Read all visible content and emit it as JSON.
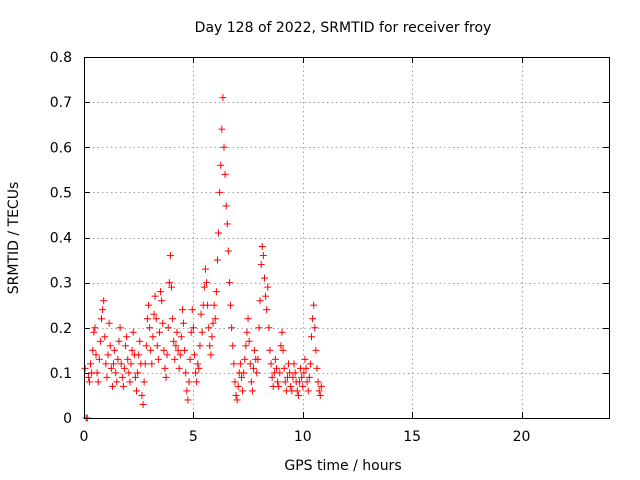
{
  "chart_data": {
    "type": "scatter",
    "title": "Day 128 of 2022, SRMTID for receiver froy",
    "xlabel": "GPS time / hours",
    "ylabel": "SRMTID / TECUs",
    "xlim": [
      0,
      24
    ],
    "ylim": [
      0,
      0.8
    ],
    "xticks": [
      0,
      5,
      10,
      15,
      20
    ],
    "yticks": [
      0,
      0.1,
      0.2,
      0.3,
      0.4,
      0.5,
      0.6,
      0.7,
      0.8
    ],
    "xtick_labels": [
      "0",
      "5",
      "10",
      "15",
      "20"
    ],
    "ytick_labels": [
      "0",
      "0.1",
      "0.2",
      "0.3",
      "0.4",
      "0.5",
      "0.6",
      "0.7",
      "0.8"
    ],
    "grid": true,
    "marker": "plus",
    "color": "#ff0000",
    "series": [
      {
        "name": "SRMTID",
        "points": [
          [
            0.05,
            0.11
          ],
          [
            0.1,
            0.0
          ],
          [
            0.15,
            0.0
          ],
          [
            0.2,
            0.09
          ],
          [
            0.25,
            0.08
          ],
          [
            0.3,
            0.12
          ],
          [
            0.35,
            0.1
          ],
          [
            0.4,
            0.15
          ],
          [
            0.45,
            0.19
          ],
          [
            0.5,
            0.2
          ],
          [
            0.55,
            0.14
          ],
          [
            0.6,
            0.1
          ],
          [
            0.65,
            0.08
          ],
          [
            0.7,
            0.13
          ],
          [
            0.75,
            0.17
          ],
          [
            0.8,
            0.22
          ],
          [
            0.85,
            0.24
          ],
          [
            0.9,
            0.26
          ],
          [
            0.95,
            0.18
          ],
          [
            1.0,
            0.12
          ],
          [
            1.05,
            0.09
          ],
          [
            1.1,
            0.14
          ],
          [
            1.15,
            0.21
          ],
          [
            1.2,
            0.16
          ],
          [
            1.25,
            0.11
          ],
          [
            1.3,
            0.07
          ],
          [
            1.35,
            0.12
          ],
          [
            1.4,
            0.15
          ],
          [
            1.45,
            0.1
          ],
          [
            1.5,
            0.08
          ],
          [
            1.55,
            0.13
          ],
          [
            1.6,
            0.17
          ],
          [
            1.65,
            0.2
          ],
          [
            1.7,
            0.12
          ],
          [
            1.75,
            0.09
          ],
          [
            1.8,
            0.07
          ],
          [
            1.85,
            0.11
          ],
          [
            1.9,
            0.16
          ],
          [
            1.95,
            0.18
          ],
          [
            2.0,
            0.13
          ],
          [
            2.05,
            0.1
          ],
          [
            2.1,
            0.08
          ],
          [
            2.15,
            0.12
          ],
          [
            2.2,
            0.15
          ],
          [
            2.25,
            0.19
          ],
          [
            2.3,
            0.14
          ],
          [
            2.35,
            0.09
          ],
          [
            2.4,
            0.06
          ],
          [
            2.45,
            0.1
          ],
          [
            2.5,
            0.14
          ],
          [
            2.55,
            0.17
          ],
          [
            2.6,
            0.12
          ],
          [
            2.65,
            0.05
          ],
          [
            2.7,
            0.03
          ],
          [
            2.75,
            0.08
          ],
          [
            2.8,
            0.12
          ],
          [
            2.85,
            0.16
          ],
          [
            2.9,
            0.22
          ],
          [
            2.95,
            0.25
          ],
          [
            3.0,
            0.2
          ],
          [
            3.05,
            0.15
          ],
          [
            3.1,
            0.12
          ],
          [
            3.15,
            0.18
          ],
          [
            3.2,
            0.23
          ],
          [
            3.25,
            0.27
          ],
          [
            3.3,
            0.22
          ],
          [
            3.35,
            0.16
          ],
          [
            3.4,
            0.13
          ],
          [
            3.45,
            0.19
          ],
          [
            3.5,
            0.28
          ],
          [
            3.55,
            0.26
          ],
          [
            3.6,
            0.21
          ],
          [
            3.65,
            0.15
          ],
          [
            3.7,
            0.11
          ],
          [
            3.75,
            0.09
          ],
          [
            3.8,
            0.14
          ],
          [
            3.85,
            0.2
          ],
          [
            3.9,
            0.3
          ],
          [
            3.95,
            0.36
          ],
          [
            4.0,
            0.29
          ],
          [
            4.05,
            0.22
          ],
          [
            4.1,
            0.17
          ],
          [
            4.15,
            0.13
          ],
          [
            4.2,
            0.16
          ],
          [
            4.25,
            0.19
          ],
          [
            4.3,
            0.15
          ],
          [
            4.35,
            0.11
          ],
          [
            4.4,
            0.14
          ],
          [
            4.45,
            0.18
          ],
          [
            4.5,
            0.24
          ],
          [
            4.55,
            0.21
          ],
          [
            4.6,
            0.15
          ],
          [
            4.65,
            0.1
          ],
          [
            4.7,
            0.06
          ],
          [
            4.75,
            0.04
          ],
          [
            4.8,
            0.08
          ],
          [
            4.85,
            0.13
          ],
          [
            4.9,
            0.19
          ],
          [
            4.95,
            0.24
          ],
          [
            5.0,
            0.2
          ],
          [
            5.05,
            0.14
          ],
          [
            5.1,
            0.1
          ],
          [
            5.15,
            0.08
          ],
          [
            5.2,
            0.12
          ],
          [
            5.25,
            0.11
          ],
          [
            5.3,
            0.16
          ],
          [
            5.35,
            0.23
          ],
          [
            5.4,
            0.19
          ],
          [
            5.45,
            0.25
          ],
          [
            5.5,
            0.29
          ],
          [
            5.55,
            0.33
          ],
          [
            5.6,
            0.3
          ],
          [
            5.65,
            0.25
          ],
          [
            5.7,
            0.2
          ],
          [
            5.75,
            0.16
          ],
          [
            5.8,
            0.14
          ],
          [
            5.85,
            0.18
          ],
          [
            5.9,
            0.21
          ],
          [
            5.95,
            0.25
          ],
          [
            6.0,
            0.22
          ],
          [
            6.05,
            0.28
          ],
          [
            6.1,
            0.35
          ],
          [
            6.15,
            0.41
          ],
          [
            6.2,
            0.5
          ],
          [
            6.25,
            0.56
          ],
          [
            6.3,
            0.64
          ],
          [
            6.35,
            0.71
          ],
          [
            6.4,
            0.6
          ],
          [
            6.45,
            0.54
          ],
          [
            6.5,
            0.47
          ],
          [
            6.55,
            0.43
          ],
          [
            6.6,
            0.37
          ],
          [
            6.65,
            0.3
          ],
          [
            6.7,
            0.25
          ],
          [
            6.75,
            0.2
          ],
          [
            6.8,
            0.16
          ],
          [
            6.85,
            0.12
          ],
          [
            6.9,
            0.08
          ],
          [
            6.95,
            0.05
          ],
          [
            7.0,
            0.04
          ],
          [
            7.05,
            0.07
          ],
          [
            7.1,
            0.1
          ],
          [
            7.15,
            0.12
          ],
          [
            7.2,
            0.09
          ],
          [
            7.25,
            0.06
          ],
          [
            7.3,
            0.1
          ],
          [
            7.35,
            0.13
          ],
          [
            7.4,
            0.16
          ],
          [
            7.45,
            0.19
          ],
          [
            7.5,
            0.22
          ],
          [
            7.55,
            0.17
          ],
          [
            7.6,
            0.12
          ],
          [
            7.65,
            0.08
          ],
          [
            7.7,
            0.06
          ],
          [
            7.75,
            0.11
          ],
          [
            7.8,
            0.15
          ],
          [
            7.85,
            0.13
          ],
          [
            7.9,
            0.1
          ],
          [
            7.95,
            0.13
          ],
          [
            8.0,
            0.2
          ],
          [
            8.05,
            0.26
          ],
          [
            8.1,
            0.34
          ],
          [
            8.15,
            0.38
          ],
          [
            8.2,
            0.36
          ],
          [
            8.25,
            0.31
          ],
          [
            8.3,
            0.27
          ],
          [
            8.35,
            0.24
          ],
          [
            8.4,
            0.29
          ],
          [
            8.45,
            0.2
          ],
          [
            8.5,
            0.15
          ],
          [
            8.55,
            0.12
          ],
          [
            8.6,
            0.09
          ],
          [
            8.65,
            0.07
          ],
          [
            8.7,
            0.1
          ],
          [
            8.75,
            0.13
          ],
          [
            8.8,
            0.11
          ],
          [
            8.85,
            0.08
          ],
          [
            8.9,
            0.07
          ],
          [
            8.95,
            0.1
          ],
          [
            9.0,
            0.16
          ],
          [
            9.05,
            0.19
          ],
          [
            9.1,
            0.15
          ],
          [
            9.15,
            0.11
          ],
          [
            9.2,
            0.08
          ],
          [
            9.25,
            0.06
          ],
          [
            9.3,
            0.09
          ],
          [
            9.35,
            0.12
          ],
          [
            9.4,
            0.1
          ],
          [
            9.45,
            0.07
          ],
          [
            9.5,
            0.06
          ],
          [
            9.55,
            0.09
          ],
          [
            9.6,
            0.12
          ],
          [
            9.65,
            0.1
          ],
          [
            9.7,
            0.08
          ],
          [
            9.75,
            0.06
          ],
          [
            9.8,
            0.05
          ],
          [
            9.85,
            0.08
          ],
          [
            9.9,
            0.11
          ],
          [
            9.95,
            0.09
          ],
          [
            10.0,
            0.07
          ],
          [
            10.05,
            0.1
          ],
          [
            10.1,
            0.13
          ],
          [
            10.15,
            0.11
          ],
          [
            10.2,
            0.08
          ],
          [
            10.25,
            0.06
          ],
          [
            10.3,
            0.09
          ],
          [
            10.35,
            0.12
          ],
          [
            10.4,
            0.18
          ],
          [
            10.45,
            0.22
          ],
          [
            10.5,
            0.25
          ],
          [
            10.55,
            0.2
          ],
          [
            10.6,
            0.15
          ],
          [
            10.65,
            0.11
          ],
          [
            10.7,
            0.08
          ],
          [
            10.75,
            0.06
          ],
          [
            10.8,
            0.05
          ],
          [
            10.85,
            0.07
          ]
        ]
      }
    ]
  }
}
